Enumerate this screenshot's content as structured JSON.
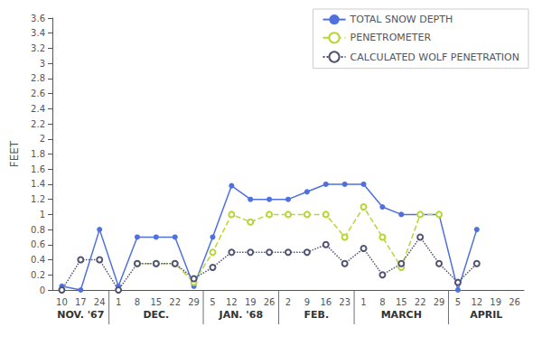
{
  "chart_data": {
    "type": "line",
    "categories": [
      "10",
      "17",
      "24",
      "1",
      "8",
      "15",
      "22",
      "29",
      "5",
      "12",
      "19",
      "26",
      "2",
      "9",
      "16",
      "23",
      "1",
      "8",
      "15",
      "22",
      "29",
      "5",
      "12",
      "19",
      "26"
    ],
    "series": [
      {
        "name": "TOTAL SNOW DEPTH",
        "marker": "circle",
        "line_style": "solid",
        "values": [
          0.05,
          0.0,
          0.8,
          0.05,
          0.7,
          0.7,
          0.7,
          0.05,
          0.7,
          1.38,
          1.2,
          1.2,
          1.2,
          1.3,
          1.4,
          1.4,
          1.4,
          1.1,
          1.0,
          1.0,
          1.0,
          0.0,
          0.8,
          null,
          null
        ]
      },
      {
        "name": "PENETROMETER",
        "marker": "emptyCircle",
        "line_style": "dashed",
        "values": [
          null,
          null,
          null,
          null,
          0.35,
          0.35,
          0.35,
          0.1,
          0.5,
          1.0,
          0.9,
          1.0,
          1.0,
          1.0,
          1.0,
          0.7,
          1.1,
          0.7,
          0.3,
          1.0,
          1.0,
          null,
          null,
          null,
          null
        ]
      },
      {
        "name": "CALCULATED WOLF PENETRATION",
        "marker": "emptyCircle",
        "line_style": "dotted",
        "values": [
          0.0,
          0.4,
          0.4,
          0.0,
          0.35,
          0.35,
          0.35,
          0.15,
          0.3,
          0.5,
          0.5,
          0.5,
          0.5,
          0.5,
          0.6,
          0.35,
          0.55,
          0.2,
          0.35,
          0.7,
          0.35,
          0.1,
          0.35,
          null,
          null
        ]
      }
    ],
    "ylabel": "FEET",
    "ylim": [
      0,
      3.6
    ],
    "yticks": [
      0,
      0.2,
      0.4,
      0.6,
      0.8,
      1.0,
      1.2,
      1.4,
      1.6,
      1.8,
      2.0,
      2.2,
      2.4,
      2.6,
      2.8,
      3.0,
      3.2,
      3.4,
      3.6
    ],
    "grid": false,
    "legend": "upper right",
    "annotations": [
      {
        "text": "NOV. '67",
        "start": 0,
        "end": 2
      },
      {
        "text": "DEC.",
        "start": 3,
        "end": 7
      },
      {
        "text": "JAN. '68",
        "start": 8,
        "end": 11
      },
      {
        "text": "FEB.",
        "start": 12,
        "end": 15
      },
      {
        "text": "MARCH",
        "start": 16,
        "end": 20
      },
      {
        "text": "APRIL",
        "start": 21,
        "end": 24
      }
    ]
  }
}
